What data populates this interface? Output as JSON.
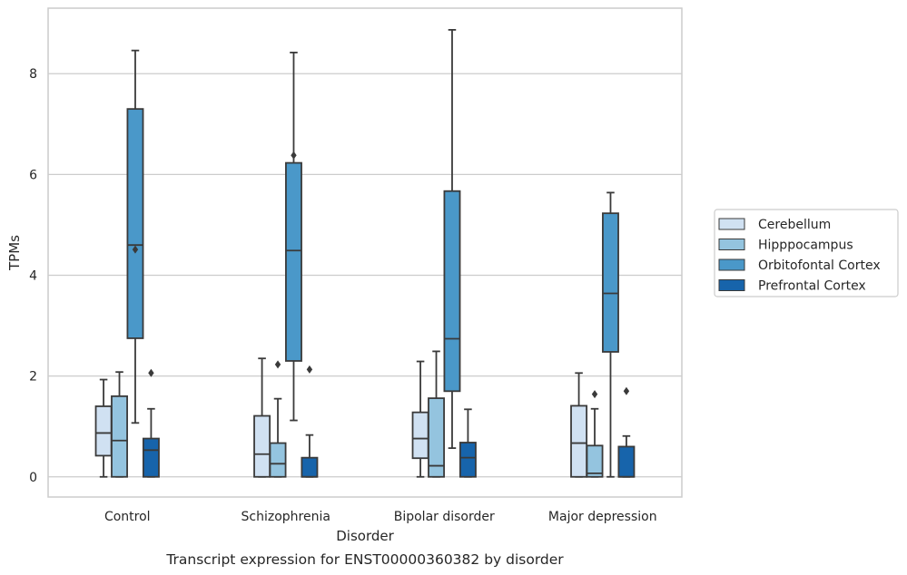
{
  "chart_data": {
    "type": "boxplot",
    "title": "",
    "caption": "Transcript expression for ENST00000360382 by disorder",
    "xlabel": "Disorder",
    "ylabel": "TPMs",
    "ylim": [
      -0.4,
      9.3
    ],
    "yticks": [
      0,
      2,
      4,
      6,
      8
    ],
    "grid": true,
    "legend_position": "right",
    "categories": [
      "Control",
      "Schizophrenia",
      "Bipolar disorder",
      "Major depression"
    ],
    "series": [
      {
        "name": "Cerebellum",
        "color": "#d0e1f2",
        "boxes": [
          {
            "whislo": 0.0,
            "q1": 0.42,
            "med": 0.87,
            "q3": 1.4,
            "whishi": 1.93,
            "fliers": []
          },
          {
            "whislo": 0.0,
            "q1": 0.0,
            "med": 0.45,
            "q3": 1.21,
            "whishi": 2.35,
            "fliers": []
          },
          {
            "whislo": 0.0,
            "q1": 0.37,
            "med": 0.76,
            "q3": 1.28,
            "whishi": 2.29,
            "fliers": []
          },
          {
            "whislo": 0.0,
            "q1": 0.0,
            "med": 0.67,
            "q3": 1.41,
            "whishi": 2.06,
            "fliers": []
          }
        ]
      },
      {
        "name": "Hipppocampus",
        "color": "#94c4df",
        "boxes": [
          {
            "whislo": 0.0,
            "q1": 0.0,
            "med": 0.72,
            "q3": 1.6,
            "whishi": 2.08,
            "fliers": []
          },
          {
            "whislo": 0.0,
            "q1": 0.0,
            "med": 0.26,
            "q3": 0.67,
            "whishi": 1.55,
            "fliers": [
              2.23
            ]
          },
          {
            "whislo": 0.0,
            "q1": 0.0,
            "med": 0.22,
            "q3": 1.56,
            "whishi": 2.49,
            "fliers": []
          },
          {
            "whislo": 0.0,
            "q1": 0.0,
            "med": 0.07,
            "q3": 0.62,
            "whishi": 1.35,
            "fliers": [
              1.64
            ]
          }
        ]
      },
      {
        "name": "Orbitofontal Cortex",
        "color": "#4a98c9",
        "boxes": [
          {
            "whislo": 1.07,
            "q1": 2.75,
            "med": 4.6,
            "q3": 7.3,
            "whishi": 8.46,
            "fliers": [
              4.51
            ]
          },
          {
            "whislo": 1.12,
            "q1": 2.3,
            "med": 4.49,
            "q3": 6.23,
            "whishi": 8.42,
            "fliers": [
              6.38
            ]
          },
          {
            "whislo": 0.57,
            "q1": 1.7,
            "med": 2.74,
            "q3": 5.67,
            "whishi": 8.87,
            "fliers": []
          },
          {
            "whislo": 0.0,
            "q1": 2.48,
            "med": 3.64,
            "q3": 5.23,
            "whishi": 5.64,
            "fliers": []
          }
        ]
      },
      {
        "name": "Prefrontal Cortex",
        "color": "#1764ab",
        "boxes": [
          {
            "whislo": 0.0,
            "q1": 0.0,
            "med": 0.53,
            "q3": 0.76,
            "whishi": 1.35,
            "fliers": [
              2.06
            ]
          },
          {
            "whislo": 0.0,
            "q1": 0.0,
            "med": 0.0,
            "q3": 0.38,
            "whishi": 0.83,
            "fliers": [
              2.13
            ]
          },
          {
            "whislo": 0.0,
            "q1": 0.0,
            "med": 0.38,
            "q3": 0.68,
            "whishi": 1.34,
            "fliers": []
          },
          {
            "whislo": 0.0,
            "q1": 0.0,
            "med": 0.0,
            "q3": 0.6,
            "whishi": 0.81,
            "fliers": [
              1.7
            ]
          }
        ]
      }
    ]
  }
}
